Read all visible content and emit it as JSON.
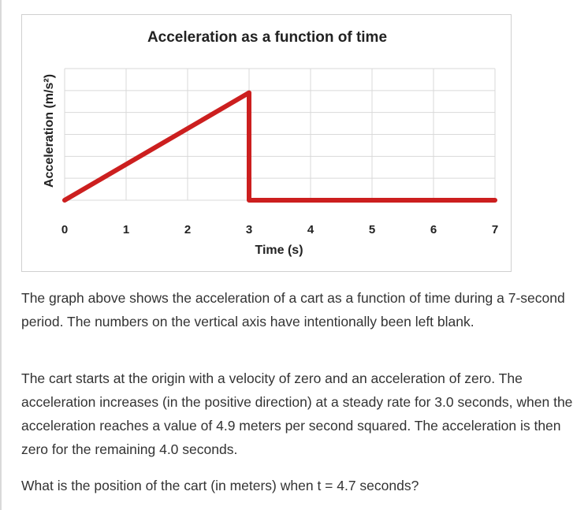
{
  "chart_data": {
    "type": "line",
    "title": "Acceleration as a function of time",
    "xlabel": "Time (s)",
    "ylabel": "Acceleration (m/s²)",
    "x_ticks": [
      "0",
      "1",
      "2",
      "3",
      "4",
      "5",
      "6",
      "7"
    ],
    "xlim": [
      0,
      7
    ],
    "ylim": [
      0,
      6
    ],
    "y_tick_labels_shown": false,
    "grid": true,
    "series": [
      {
        "x": [
          0,
          3,
          3,
          7
        ],
        "y": [
          0,
          4.9,
          0,
          0
        ],
        "color": "#cc1f1f"
      }
    ]
  },
  "text": {
    "paragraph_1": "The graph above shows the acceleration of a cart as a function of time during a 7-second period.  The numbers on the vertical axis have intentionally been left blank.",
    "paragraph_2": "The cart starts at the origin with a velocity of zero and an acceleration of zero. The acceleration increases (in the positive direction) at a steady rate for 3.0 seconds, when the acceleration reaches a value of 4.9 meters per second squared. The acceleration is then zero for the remaining 4.0 seconds.",
    "question": "What is the position of the cart (in meters) when t = 4.7 seconds?"
  },
  "colors": {
    "line": "#cc1f1f",
    "grid": "#d9d9d9",
    "frame": "#d0d0d0",
    "text": "#333333"
  }
}
